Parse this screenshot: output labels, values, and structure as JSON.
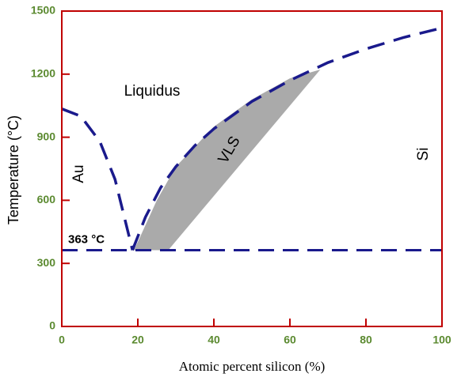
{
  "chart_data": {
    "type": "line",
    "xlabel": "Atomic percent silicon (%)",
    "ylabel": "Temperature (°C)",
    "xlim": [
      0,
      100
    ],
    "xticks": [
      0,
      20,
      40,
      60,
      80,
      100
    ],
    "ylim": [
      0,
      1500
    ],
    "yticks": [
      0,
      300,
      600,
      900,
      1200,
      1500
    ],
    "frame_color": "#c00000",
    "region": {
      "color": "#aaaaaa",
      "x": [
        19,
        28,
        68,
        60,
        50,
        40,
        30,
        25,
        19
      ],
      "values": [
        363,
        363,
        1222,
        1180,
        1080,
        950,
        760,
        600,
        363
      ]
    },
    "series": [
      {
        "color": "#1a1a8c",
        "x": [
          0,
          5,
          10,
          14,
          17,
          18.6
        ],
        "values": [
          1035,
          1000,
          880,
          700,
          480,
          363
        ]
      },
      {
        "color": "#1a1a8c",
        "x": [
          18.6,
          22,
          26,
          30,
          35,
          40,
          50,
          60,
          70,
          80,
          90,
          100
        ],
        "values": [
          363,
          520,
          660,
          760,
          860,
          940,
          1070,
          1170,
          1255,
          1320,
          1375,
          1420
        ]
      }
    ],
    "eutectic": {
      "value": 363,
      "label": "363 °C",
      "color": "#1a1a8c"
    },
    "annotations": [
      "Liquidus",
      "Au",
      "VLS",
      "Si"
    ]
  }
}
